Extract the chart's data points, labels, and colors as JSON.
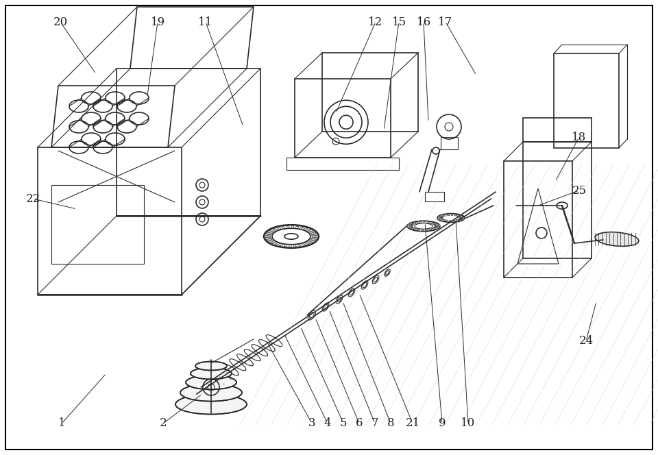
{
  "bg_color": "#ffffff",
  "line_color": "#2a2a2a",
  "fig_width": 9.6,
  "fig_height": 6.64,
  "dpi": 100,
  "label_font": 12,
  "lw_thick": 1.8,
  "lw_med": 1.2,
  "lw_thin": 0.8,
  "labels_data": [
    [
      90,
      618,
      155,
      545,
      "1"
    ],
    [
      238,
      618,
      295,
      575,
      "2"
    ],
    [
      455,
      618,
      390,
      500,
      "3"
    ],
    [
      478,
      618,
      415,
      488,
      "4"
    ],
    [
      501,
      618,
      438,
      476,
      "5"
    ],
    [
      524,
      618,
      460,
      464,
      "6"
    ],
    [
      547,
      618,
      480,
      452,
      "7"
    ],
    [
      570,
      618,
      500,
      440,
      "8"
    ],
    [
      602,
      618,
      524,
      428,
      "21"
    ],
    [
      645,
      618,
      620,
      325,
      "9"
    ],
    [
      683,
      618,
      665,
      320,
      "10"
    ],
    [
      300,
      32,
      355,
      185,
      "11"
    ],
    [
      548,
      32,
      490,
      165,
      "12"
    ],
    [
      582,
      32,
      560,
      190,
      "15"
    ],
    [
      618,
      32,
      625,
      178,
      "16"
    ],
    [
      650,
      32,
      695,
      110,
      "17"
    ],
    [
      845,
      200,
      810,
      265,
      "18"
    ],
    [
      230,
      32,
      215,
      140,
      "19"
    ],
    [
      88,
      32,
      140,
      108,
      "20"
    ],
    [
      48,
      290,
      112,
      305,
      "22"
    ],
    [
      855,
      498,
      870,
      440,
      "24"
    ],
    [
      845,
      278,
      785,
      300,
      "25"
    ]
  ]
}
